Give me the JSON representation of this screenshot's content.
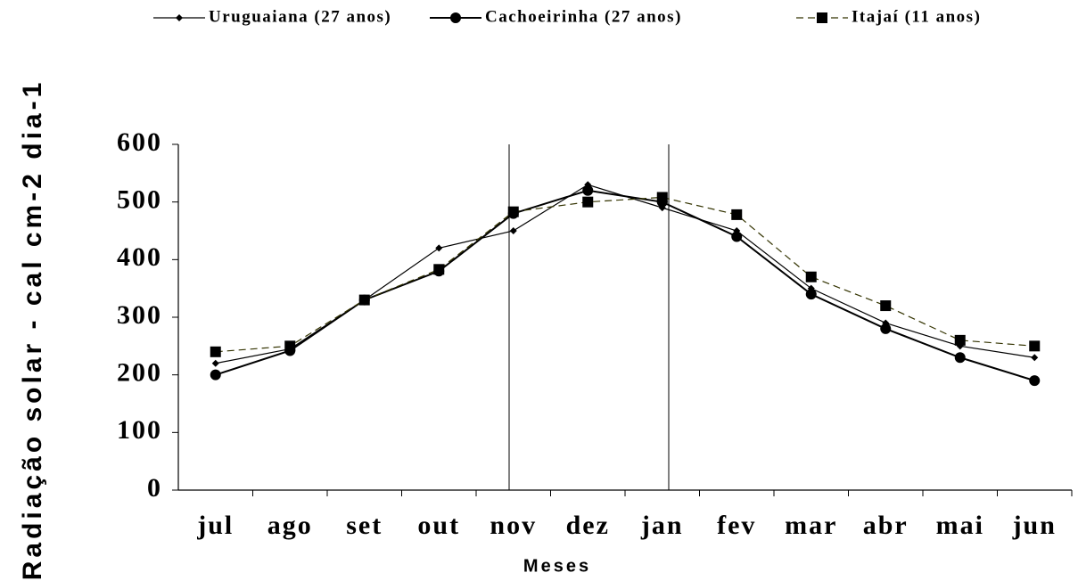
{
  "chart_data": {
    "type": "line",
    "y_label": "Radiação solar - cal cm-2 dia-1",
    "x_label": "Meses",
    "categories": [
      "jul",
      "ago",
      "set",
      "out",
      "nov",
      "dez",
      "jan",
      "fev",
      "mar",
      "abr",
      "mai",
      "jun"
    ],
    "series": [
      {
        "name": "Uruguaiana (27 anos)",
        "color": "#000000",
        "marker": "diamond",
        "dashed": false,
        "values": [
          220,
          245,
          330,
          420,
          450,
          530,
          490,
          450,
          350,
          290,
          250,
          230
        ]
      },
      {
        "name": "Cachoeirinha (27 anos)",
        "color": "#000000",
        "marker": "circle",
        "dashed": false,
        "values": [
          200,
          242,
          330,
          380,
          480,
          520,
          500,
          440,
          340,
          280,
          230,
          190
        ]
      },
      {
        "name": "Itajaí (11 anos)",
        "color": "#333300",
        "marker": "square",
        "dashed": true,
        "values": [
          240,
          250,
          330,
          383,
          483,
          500,
          508,
          478,
          370,
          320,
          260,
          250
        ]
      }
    ],
    "ylim": [
      0,
      600
    ],
    "yticks": [
      0,
      100,
      200,
      300,
      400,
      500,
      600
    ],
    "grid": false
  }
}
